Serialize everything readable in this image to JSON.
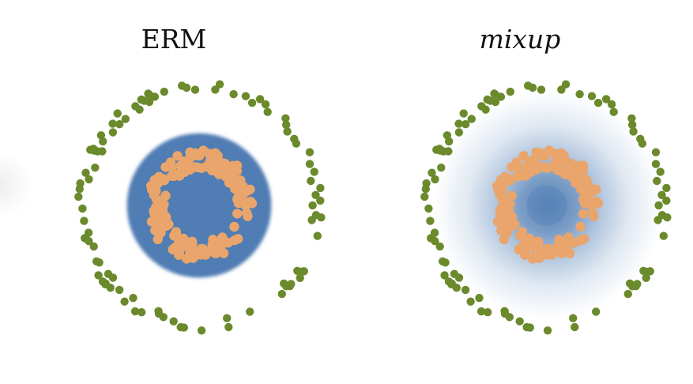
{
  "chart_data": [
    {
      "type": "scatter",
      "title": "ERM",
      "title_style": "normal",
      "decision_region": "hard-disk",
      "colors": {
        "outer": "#6a8a2c",
        "inner": "#e9a56b",
        "region": "#4f7db4",
        "background": "#ffffff"
      },
      "center": [
        0,
        0
      ],
      "series": [
        {
          "class": "outer",
          "radius": 1.0,
          "radius_noise": 0.05,
          "count": 95
        },
        {
          "class": "inner",
          "radius": 0.38,
          "radius_noise": 0.08,
          "count": 160
        }
      ],
      "region_radius": 0.62,
      "region_hole_radius": 0.17
    },
    {
      "type": "scatter",
      "title": "mixup",
      "title_style": "italic",
      "decision_region": "soft-gradient",
      "colors": {
        "outer": "#6a8a2c",
        "inner": "#e9a56b",
        "region": "#4f7db4",
        "background": "#ffffff"
      },
      "center": [
        0,
        0
      ],
      "series": [
        {
          "class": "outer",
          "radius": 1.0,
          "radius_noise": 0.05,
          "count": 95
        },
        {
          "class": "inner",
          "radius": 0.38,
          "radius_noise": 0.08,
          "count": 160
        }
      ],
      "region_radius": 0.95,
      "region_hole_radius": 0.17
    }
  ]
}
